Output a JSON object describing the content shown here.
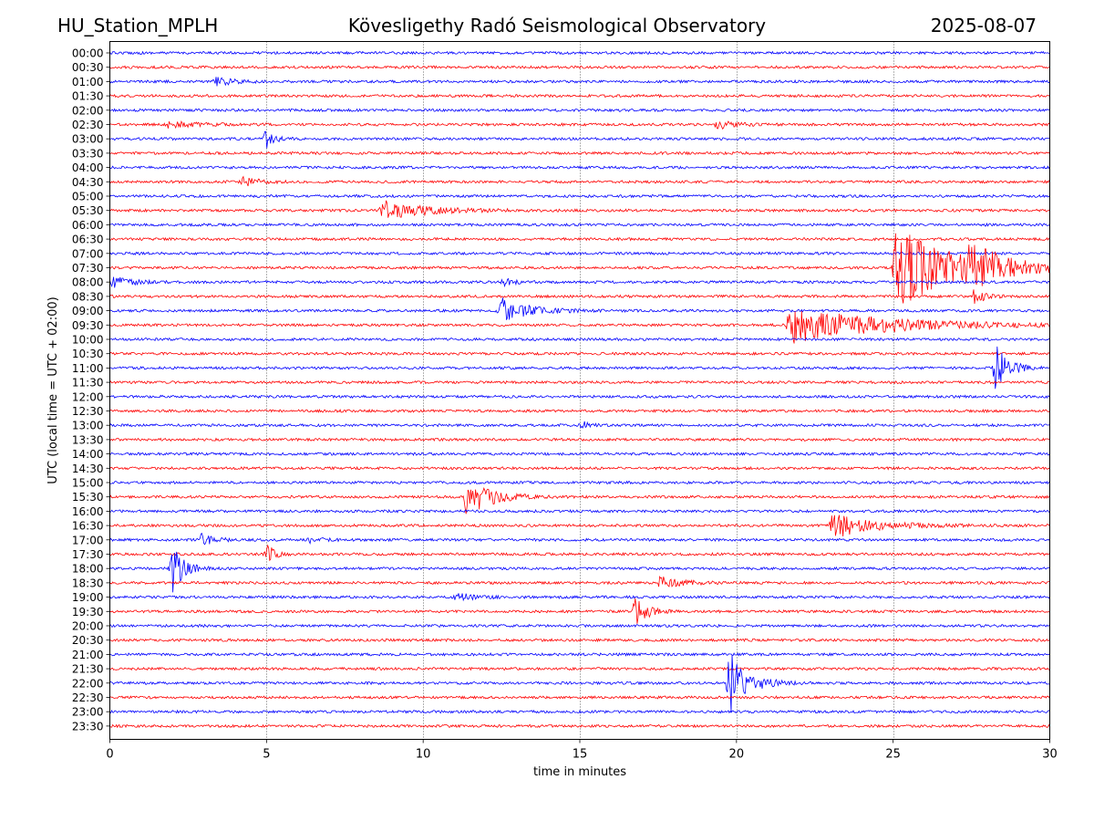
{
  "header": {
    "station": "HU_Station_MPLH",
    "observatory": "Kövesligethy Radó Seismological Observatory",
    "date": "2025-08-07"
  },
  "colors": {
    "even_trace": "#0000ff",
    "odd_trace": "#ff0000",
    "axes": "#000000",
    "grid": "#000000"
  },
  "chart_data": {
    "type": "line",
    "title": "Kövesligethy Radó Seismological Observatory",
    "xlabel": "time in minutes",
    "ylabel": "UTC (local time = UTC + 02:00)",
    "xlim": [
      0,
      30
    ],
    "xticks": [
      0,
      5,
      10,
      15,
      20,
      25,
      30
    ],
    "grid": "vertical dotted at 5, 10, 15, 20, 25",
    "rows": [
      "00:00",
      "00:30",
      "01:00",
      "01:30",
      "02:00",
      "02:30",
      "03:00",
      "03:30",
      "04:00",
      "04:30",
      "05:00",
      "05:30",
      "06:00",
      "06:30",
      "07:00",
      "07:30",
      "08:00",
      "08:30",
      "09:00",
      "09:30",
      "10:00",
      "10:30",
      "11:00",
      "11:30",
      "12:00",
      "12:30",
      "13:00",
      "13:30",
      "14:00",
      "14:30",
      "15:00",
      "15:30",
      "16:00",
      "16:30",
      "17:00",
      "17:30",
      "18:00",
      "18:30",
      "19:00",
      "19:30",
      "20:00",
      "20:30",
      "21:00",
      "21:30",
      "22:00",
      "22:30",
      "23:00",
      "23:30"
    ],
    "row_colors": "alternating blue (even rows) and red (odd rows)",
    "events": [
      {
        "row": 2,
        "start_min": 3.3,
        "amplitude": 0.5,
        "duration_min": 1.3
      },
      {
        "row": 5,
        "start_min": 1.8,
        "amplitude": 0.4,
        "duration_min": 2.0
      },
      {
        "row": 5,
        "start_min": 19.3,
        "amplitude": 0.5,
        "duration_min": 1.2
      },
      {
        "row": 6,
        "start_min": 4.9,
        "amplitude": 1.0,
        "duration_min": 0.6
      },
      {
        "row": 9,
        "start_min": 4.1,
        "amplitude": 0.8,
        "duration_min": 1.0
      },
      {
        "row": 11,
        "start_min": 8.6,
        "amplitude": 1.1,
        "duration_min": 3.2
      },
      {
        "row": 15,
        "start_min": 25.0,
        "amplitude": 4.8,
        "duration_min": 4.2
      },
      {
        "row": 15,
        "start_min": 27.3,
        "amplitude": 1.8,
        "duration_min": 2.8
      },
      {
        "row": 16,
        "start_min": 0.0,
        "amplitude": 0.6,
        "duration_min": 1.4
      },
      {
        "row": 16,
        "start_min": 12.5,
        "amplitude": 0.5,
        "duration_min": 0.8
      },
      {
        "row": 17,
        "start_min": 27.5,
        "amplitude": 0.8,
        "duration_min": 0.8
      },
      {
        "row": 18,
        "start_min": 12.4,
        "amplitude": 1.4,
        "duration_min": 2.0
      },
      {
        "row": 19,
        "start_min": 21.6,
        "amplitude": 2.0,
        "duration_min": 7.0
      },
      {
        "row": 22,
        "start_min": 28.2,
        "amplitude": 3.0,
        "duration_min": 0.9
      },
      {
        "row": 26,
        "start_min": 15.0,
        "amplitude": 0.4,
        "duration_min": 0.6
      },
      {
        "row": 31,
        "start_min": 11.3,
        "amplitude": 2.2,
        "duration_min": 1.8
      },
      {
        "row": 33,
        "start_min": 23.0,
        "amplitude": 1.4,
        "duration_min": 3.0
      },
      {
        "row": 34,
        "start_min": 2.8,
        "amplitude": 0.7,
        "duration_min": 1.0
      },
      {
        "row": 34,
        "start_min": 6.3,
        "amplitude": 0.3,
        "duration_min": 1.0
      },
      {
        "row": 35,
        "start_min": 4.95,
        "amplitude": 1.2,
        "duration_min": 0.5
      },
      {
        "row": 36,
        "start_min": 1.9,
        "amplitude": 3.0,
        "duration_min": 0.8
      },
      {
        "row": 37,
        "start_min": 17.5,
        "amplitude": 0.7,
        "duration_min": 1.6
      },
      {
        "row": 38,
        "start_min": 11.0,
        "amplitude": 0.4,
        "duration_min": 1.6
      },
      {
        "row": 39,
        "start_min": 16.7,
        "amplitude": 1.7,
        "duration_min": 0.9
      },
      {
        "row": 44,
        "start_min": 19.7,
        "amplitude": 3.6,
        "duration_min": 1.4
      }
    ]
  }
}
